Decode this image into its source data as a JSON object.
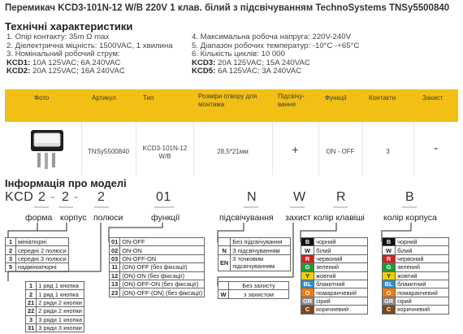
{
  "title": "Перемикач KCD3-101N-12 W/B 220V 1 клав. білий з підсвічуванням TechnoSystems TNSy5500840",
  "specs": {
    "heading": "Технічні характеристики",
    "left": [
      "1. Опір контакту: 35m Ω  max",
      "2. Діелектрична міцність:  1500VAC, 1 хвилина",
      "3. Номінальний робочий струм:"
    ],
    "left_rated": [
      {
        "key": "KCD1:",
        "val": " 10A 125VAC; 6A 240VAC"
      },
      {
        "key": "KCD2:",
        "val": " 20A 125VAC; 16A 240VAC"
      }
    ],
    "right": [
      "4. Максимальна робоча напруга: 220V-240V",
      "5. Діапазон робочих температур: -10°C -+65°C",
      "6. Кількість циклів: 10 000"
    ],
    "right_rated": [
      {
        "key": "KCD3:",
        "val": " 20A 125VAC; 15A 240VAC"
      },
      {
        "key": "KCD5:",
        "val": " 6A 125VAC; 3A 240VAC"
      }
    ]
  },
  "product_table": {
    "headers": [
      "Фото",
      "Артикул",
      "Тип",
      "Розміри отвору для монтажа",
      "Підсвічу-вання",
      "Функції",
      "Контакти",
      "Захист"
    ],
    "row": [
      "TNSy5500840",
      "KCD3-101N-12 W/B",
      "28,5*21мм",
      "+",
      "ON - OFF",
      "3",
      "-"
    ]
  },
  "model_info": {
    "heading": "Інформація про моделі",
    "code": {
      "kcd": "KCD",
      "p1": "2",
      "p2": "2",
      "p3": "2",
      "p4": "01",
      "p5": "N",
      "p6": "W",
      "p7": "R",
      "p8": "B"
    },
    "field_labels": {
      "shape": "форма",
      "body": "корпус",
      "poles": "полюси",
      "functions": "функції",
      "illumination": "підсвічування",
      "protection": "захист",
      "key_color": "колір клавіші",
      "body_color": "колір корпуса"
    },
    "shape_table": [
      {
        "k": "1",
        "v": "мініатюрні"
      },
      {
        "k": "2",
        "v": "середні 2 полюси"
      },
      {
        "k": "3",
        "v": "середні 3 полюси"
      },
      {
        "k": "5",
        "v": "надмініатюрні"
      }
    ],
    "poles_table": [
      {
        "k": "1",
        "v": "1 ряд 1 кнопка"
      },
      {
        "k": "2",
        "v": "1 ряд 1 кнопка"
      },
      {
        "k": "21",
        "v": "2 ряди 2 кнопки"
      },
      {
        "k": "22",
        "v": "2 ряди 2 кнопки"
      },
      {
        "k": "3",
        "v": "3 ряди 1 кнопка"
      },
      {
        "k": "31",
        "v": "3 ряди 3 кнопки"
      }
    ],
    "functions_table": [
      {
        "k": "01",
        "v": "ON-OFF"
      },
      {
        "k": "02",
        "v": "ON-ON"
      },
      {
        "k": "03",
        "v": "ON-OFF-ON"
      },
      {
        "k": "11",
        "v": "(ON)-OFF (без фіксації)"
      },
      {
        "k": "12",
        "v": "(ON)-ON (без фіксації)"
      },
      {
        "k": "13",
        "v": "(ON)-OFF-ON (без фіксації)"
      },
      {
        "k": "23",
        "v": "(ON)-OFF-(ON) (без фіксації)"
      }
    ],
    "illum_table": [
      {
        "k": "",
        "v": "Без підсвічування"
      },
      {
        "k": "N",
        "v": "З підсвічуванням"
      },
      {
        "k": "EN",
        "v": "3 точковим підсвічуванням"
      }
    ],
    "protect_table": [
      {
        "k": "",
        "v": "Без захисту"
      },
      {
        "k": "W",
        "v": "з захистом"
      }
    ],
    "key_colors": [
      {
        "k": "B",
        "v": "чорний",
        "color": "#111111"
      },
      {
        "k": "W",
        "v": "білий",
        "color": "#ffffff"
      },
      {
        "k": "R",
        "v": "червоний",
        "color": "#d42020"
      },
      {
        "k": "G",
        "v": "зелений",
        "color": "#1f9a3a"
      },
      {
        "k": "Y",
        "v": "жовтий",
        "color": "#f2d000"
      },
      {
        "k": "BL",
        "v": "блакитний",
        "color": "#2d8fd0"
      },
      {
        "k": "O",
        "v": "помаранчевий",
        "color": "#f07a10"
      },
      {
        "k": "GR",
        "v": "сірий",
        "color": "#8a8a8a"
      },
      {
        "k": "C",
        "v": "коричневий",
        "color": "#7a4a20"
      }
    ],
    "body_colors": [
      {
        "k": "B",
        "v": "чорний",
        "color": "#111111"
      },
      {
        "k": "W",
        "v": "білий",
        "color": "#ffffff"
      },
      {
        "k": "R",
        "v": "червоний",
        "color": "#d42020"
      },
      {
        "k": "G",
        "v": "зелений",
        "color": "#1f9a3a"
      },
      {
        "k": "Y",
        "v": "жовтий",
        "color": "#f2d000"
      },
      {
        "k": "BL",
        "v": "блакитний",
        "color": "#2d8fd0"
      },
      {
        "k": "O",
        "v": "помаранчевий",
        "color": "#f07a10"
      },
      {
        "k": "GR",
        "v": "сірий",
        "color": "#8a8a8a"
      },
      {
        "k": "C",
        "v": "коричневий",
        "color": "#7a4a20"
      }
    ]
  }
}
